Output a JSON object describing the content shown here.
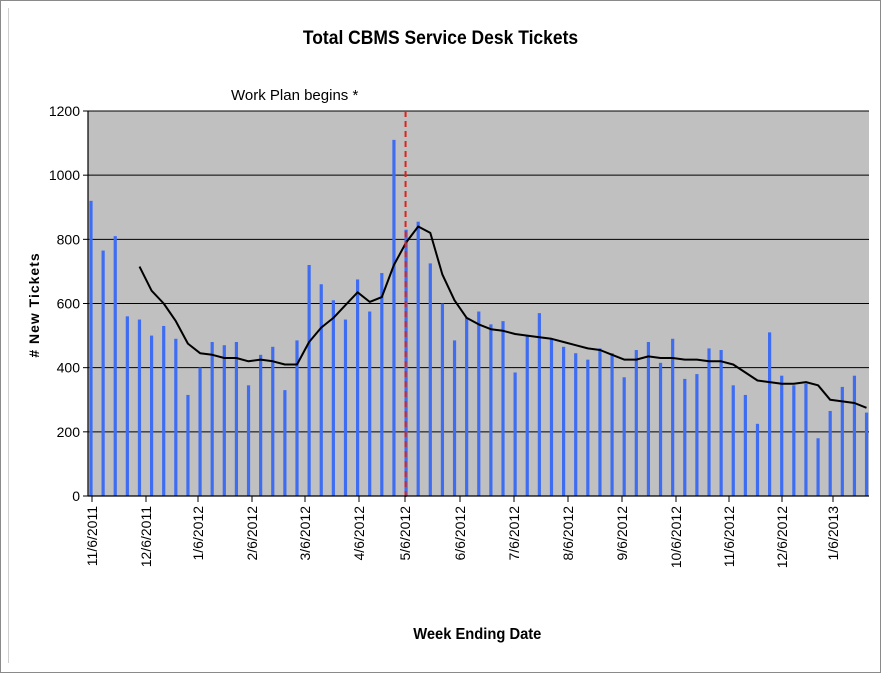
{
  "chart_data": {
    "type": "bar",
    "title": "Total CBMS Service Desk Tickets",
    "xlabel": "Week Ending Date",
    "ylabel": "# New Tickets",
    "ylim": [
      0,
      1200
    ],
    "yticks": [
      "0",
      "200",
      "400",
      "600",
      "800",
      "1000",
      "1200"
    ],
    "xtick_labels": [
      "11/6/2011",
      "12/6/2011",
      "1/6/2012",
      "2/6/2012",
      "3/6/2012",
      "4/6/2012",
      "5/6/2012",
      "6/6/2012",
      "7/6/2012",
      "8/6/2012",
      "9/6/2012",
      "10/6/2012",
      "11/6/2012",
      "12/6/2012",
      "1/6/2013"
    ],
    "grid": true,
    "legend": "none",
    "bar_color": "#3f6df2",
    "trend_color": "#000000",
    "marker_color": "#e0211c",
    "plot_background": "#c0c0c0",
    "annotation": {
      "text": "Work Plan begins  *",
      "at_week": 26
    },
    "weekly_tickets": [
      920,
      765,
      810,
      560,
      550,
      500,
      530,
      490,
      315,
      400,
      480,
      470,
      480,
      345,
      440,
      465,
      330,
      485,
      720,
      660,
      610,
      550,
      675,
      575,
      695,
      1110,
      830,
      855,
      725,
      600,
      485,
      555,
      575,
      535,
      545,
      385,
      500,
      570,
      490,
      465,
      445,
      425,
      460,
      445,
      370,
      455,
      480,
      415,
      490,
      365,
      380,
      460,
      455,
      345,
      315,
      225,
      510,
      375,
      345,
      350,
      180,
      265,
      340,
      375,
      260
    ],
    "moving_average": [
      null,
      null,
      null,
      null,
      715,
      640,
      600,
      545,
      475,
      445,
      440,
      430,
      430,
      420,
      425,
      420,
      410,
      410,
      480,
      525,
      555,
      595,
      635,
      605,
      620,
      720,
      790,
      840,
      820,
      690,
      610,
      555,
      535,
      520,
      515,
      505,
      500,
      495,
      490,
      480,
      470,
      460,
      455,
      440,
      425,
      425,
      435,
      430,
      430,
      425,
      425,
      420,
      420,
      410,
      385,
      360,
      355,
      350,
      350,
      355,
      345,
      300,
      295,
      290,
      275
    ]
  }
}
